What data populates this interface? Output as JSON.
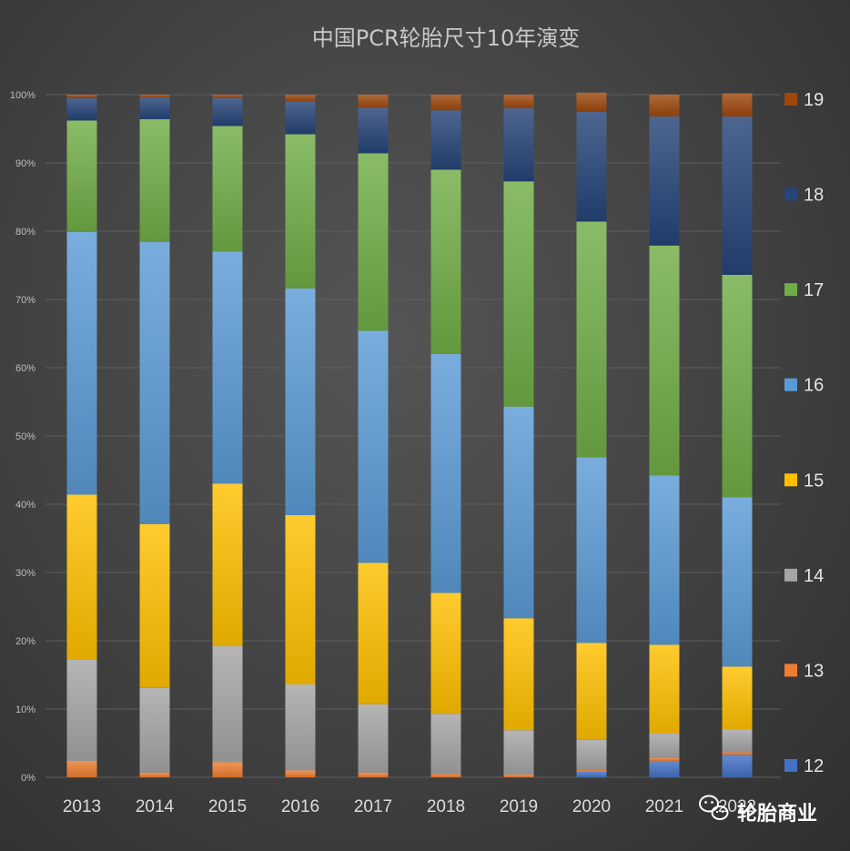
{
  "chart_data": {
    "type": "bar",
    "stacked": true,
    "percent": true,
    "title": "中国PCR轮胎尺寸10年演变",
    "categories": [
      "2013",
      "2014",
      "2015",
      "2016",
      "2017",
      "2018",
      "2019",
      "2020",
      "2021",
      "2022"
    ],
    "ylim": [
      0,
      100
    ],
    "yticks": [
      "0%",
      "10%",
      "20%",
      "30%",
      "40%",
      "50%",
      "60%",
      "70%",
      "80%",
      "90%",
      "100%"
    ],
    "legend_position": "right",
    "series": [
      {
        "name": "12",
        "color": "#4472c4",
        "values": [
          0,
          0,
          0,
          0,
          0,
          0,
          0,
          0.8,
          2.4,
          3.3
        ]
      },
      {
        "name": "13",
        "color": "#ed7d31",
        "values": [
          2.4,
          0.7,
          2.2,
          1.0,
          0.7,
          0.5,
          0.4,
          0.3,
          0.4,
          0.4
        ]
      },
      {
        "name": "14",
        "color": "#a5a5a5",
        "values": [
          14.8,
          12.4,
          17.0,
          12.6,
          10.0,
          8.8,
          6.5,
          4.4,
          3.6,
          3.3
        ]
      },
      {
        "name": "15",
        "color": "#ffc000",
        "values": [
          24.2,
          24.0,
          23.8,
          24.8,
          20.7,
          17.7,
          16.4,
          14.2,
          13.0,
          9.2
        ]
      },
      {
        "name": "16",
        "color": "#5b9bd5",
        "values": [
          38.5,
          41.3,
          34.0,
          33.2,
          34.0,
          35.0,
          31.0,
          27.2,
          24.8,
          24.8
        ]
      },
      {
        "name": "17",
        "color": "#70ad47",
        "values": [
          16.3,
          18.0,
          18.4,
          22.6,
          26.0,
          27.0,
          33.0,
          34.5,
          33.7,
          32.6
        ]
      },
      {
        "name": "18",
        "color": "#264478",
        "values": [
          3.3,
          3.2,
          4.1,
          4.8,
          6.7,
          8.7,
          10.7,
          16.1,
          18.9,
          23.2
        ]
      },
      {
        "name": "19",
        "color": "#9e480e",
        "values": [
          0.5,
          0.4,
          0.5,
          1.0,
          1.9,
          2.3,
          2.0,
          2.8,
          3.2,
          3.4
        ]
      }
    ]
  },
  "watermark": {
    "icon": "wechat-icon",
    "text": "轮胎商业"
  }
}
